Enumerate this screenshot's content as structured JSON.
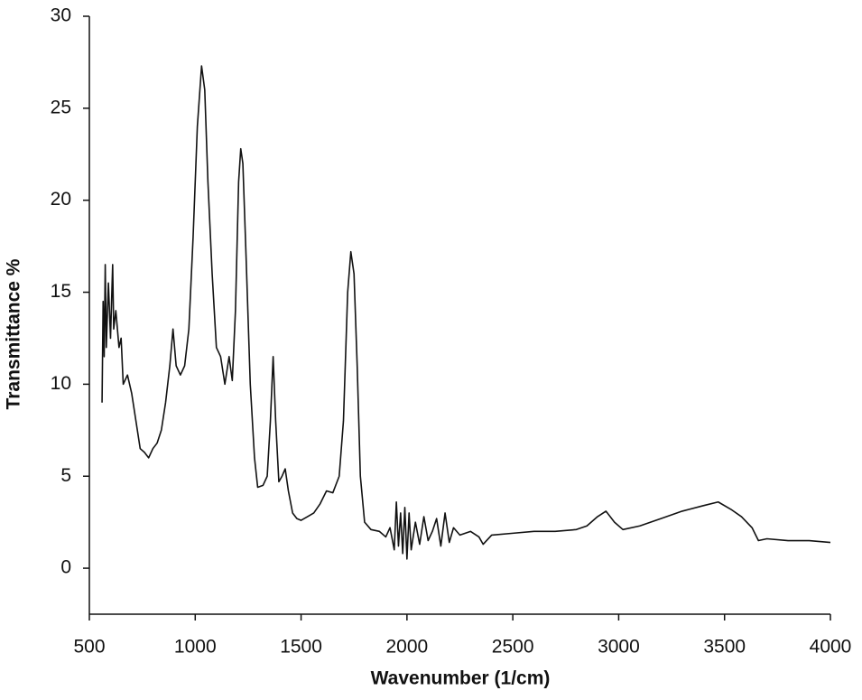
{
  "chart_data": {
    "type": "line",
    "x_label": "Wavenumber (1/cm)",
    "y_label": "Transmittance %",
    "color": "#111111",
    "xlim": [
      500,
      4000
    ],
    "xticks": [
      500,
      1000,
      1500,
      2000,
      2500,
      3000,
      3500,
      4000
    ],
    "ylim": [
      -2.5,
      30
    ],
    "yticks": [
      0,
      5,
      10,
      15,
      20,
      25,
      30
    ],
    "x": [
      560,
      565,
      570,
      575,
      580,
      590,
      600,
      610,
      615,
      625,
      640,
      650,
      660,
      680,
      700,
      720,
      740,
      760,
      780,
      800,
      820,
      840,
      860,
      880,
      895,
      910,
      930,
      950,
      970,
      990,
      1010,
      1030,
      1045,
      1060,
      1080,
      1100,
      1120,
      1140,
      1160,
      1175,
      1190,
      1205,
      1215,
      1225,
      1240,
      1260,
      1280,
      1295,
      1320,
      1340,
      1355,
      1368,
      1380,
      1395,
      1410,
      1425,
      1440,
      1460,
      1480,
      1500,
      1530,
      1560,
      1590,
      1620,
      1650,
      1680,
      1700,
      1720,
      1735,
      1750,
      1765,
      1780,
      1800,
      1830,
      1870,
      1900,
      1920,
      1940,
      1950,
      1960,
      1970,
      1980,
      1990,
      2000,
      2010,
      2020,
      2040,
      2060,
      2080,
      2100,
      2120,
      2140,
      2160,
      2180,
      2200,
      2220,
      2250,
      2300,
      2340,
      2360,
      2400,
      2500,
      2600,
      2700,
      2800,
      2850,
      2900,
      2940,
      2980,
      3020,
      3100,
      3200,
      3300,
      3400,
      3470,
      3530,
      3580,
      3630,
      3660,
      3700,
      3800,
      3900,
      4000
    ],
    "values": [
      9,
      14.5,
      11.5,
      16.5,
      12,
      15.5,
      12.5,
      16.5,
      13,
      14,
      12,
      12.5,
      10,
      10.5,
      9.5,
      8,
      6.5,
      6.3,
      6,
      6.5,
      6.8,
      7.5,
      9,
      11,
      13,
      11,
      10.5,
      11,
      13,
      18,
      24,
      27.3,
      26,
      21,
      16,
      12,
      11.5,
      10,
      11.5,
      10.2,
      14,
      21,
      22.8,
      22,
      17,
      10,
      6,
      4.4,
      4.5,
      5,
      8,
      11.5,
      8,
      4.7,
      5,
      5.4,
      4.2,
      3,
      2.7,
      2.6,
      2.8,
      3,
      3.5,
      4.2,
      4.1,
      5,
      8,
      15,
      17.2,
      16,
      11,
      5,
      2.5,
      2.1,
      2,
      1.7,
      2.2,
      1,
      3.6,
      1.2,
      3,
      0.8,
      3.3,
      0.5,
      3,
      1,
      2.5,
      1.3,
      2.8,
      1.5,
      2,
      2.7,
      1.2,
      3,
      1.4,
      2.2,
      1.8,
      2,
      1.7,
      1.3,
      1.8,
      1.9,
      2,
      2,
      2.1,
      2.3,
      2.8,
      3.1,
      2.5,
      2.1,
      2.3,
      2.7,
      3.1,
      3.4,
      3.6,
      3.2,
      2.8,
      2.2,
      1.5,
      1.6,
      1.5,
      1.5,
      1.4
    ]
  }
}
